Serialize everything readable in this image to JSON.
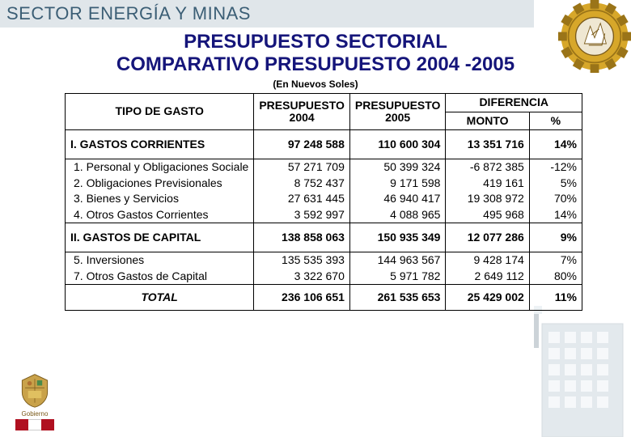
{
  "header": {
    "sector_title": "SECTOR ENERGÍA Y MINAS",
    "title_line1": "PRESUPUESTO  SECTORIAL",
    "title_line2": "COMPARATIVO PRESUPUESTO 2004 -2005",
    "subtitle": "(En Nuevos Soles)"
  },
  "table": {
    "headers": {
      "tipo": "TIPO DE GASTO",
      "p2004": "PRESUPUESTO 2004",
      "p2005": "PRESUPUESTO 2005",
      "diff": "DIFERENCIA",
      "monto": "MONTO",
      "pct": "%"
    },
    "section1": {
      "label": "I.   GASTOS  CORRIENTES",
      "p2004": "97 248 588",
      "p2005": "110 600 304",
      "monto": "13 351 716",
      "pct": "14%"
    },
    "rows1": [
      {
        "label": "1. Personal y Obligaciones Sociale",
        "p2004": "57 271 709",
        "p2005": "50 399 324",
        "monto": "-6 872 385",
        "pct": "-12%"
      },
      {
        "label": "2. Obligaciones Previsionales",
        "p2004": "8 752 437",
        "p2005": "9 171 598",
        "monto": "419 161",
        "pct": "5%"
      },
      {
        "label": "3. Bienes y Servicios",
        "p2004": "27 631 445",
        "p2005": "46 940 417",
        "monto": "19 308 972",
        "pct": "70%"
      },
      {
        "label": "4. Otros Gastos Corrientes",
        "p2004": "3 592 997",
        "p2005": "4 088 965",
        "monto": "495 968",
        "pct": "14%"
      }
    ],
    "section2": {
      "label": "II.   GASTOS DE CAPITAL",
      "p2004": "138 858 063",
      "p2005": "150 935 349",
      "monto": "12 077 286",
      "pct": "9%"
    },
    "rows2": [
      {
        "label": "5.  Inversiones",
        "p2004": "135 535 393",
        "p2005": "144 963 567",
        "monto": "9 428 174",
        "pct": "7%"
      },
      {
        "label": "7.  Otros Gastos de Capital",
        "p2004": "3 322 670",
        "p2005": "5 971 782",
        "monto": "2 649 112",
        "pct": "80%"
      }
    ],
    "total": {
      "label": "TOTAL",
      "p2004": "236 106 651",
      "p2005": "261 535 653",
      "monto": "25 429 002",
      "pct": "11%"
    }
  },
  "colors": {
    "header_bg": "#e0e6ea",
    "header_text": "#3b5e75",
    "title_text": "#15157a",
    "border": "#000000",
    "emblem_gear": "#d7a72a",
    "emblem_center": "#efe7d2",
    "peru_red": "#b01020"
  },
  "footer": {
    "gov_label": "Gobierno",
    "country": "Perú"
  }
}
